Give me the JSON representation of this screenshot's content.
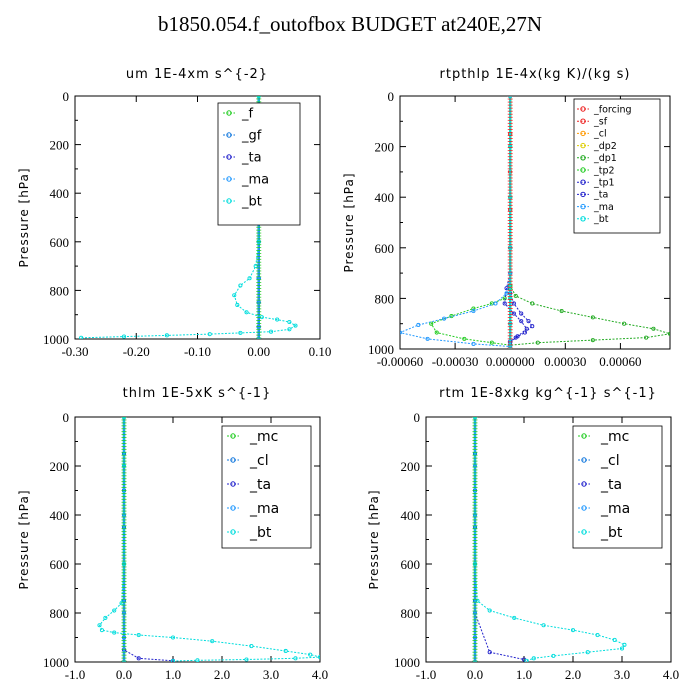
{
  "page": {
    "title": "b1850.054.f_outofbox  BUDGET at240E,27N"
  },
  "chart_data": [
    {
      "type": "line",
      "title": "um   1E-4xm  s^{-2}",
      "ylabel": "Pressure  [hPa]",
      "xlim": [
        -0.3,
        0.1
      ],
      "ylim": [
        0,
        1000
      ],
      "y_inverted": true,
      "xticks": [
        "-0.30",
        "-0.20",
        "-0.10",
        "0.00",
        "0.10"
      ],
      "yticks": [
        "0",
        "200",
        "400",
        "600",
        "800",
        "1000"
      ],
      "legend": "top-right",
      "series": [
        {
          "name": "_f",
          "color": "#22cc22",
          "x": [
            0,
            0,
            0,
            0,
            0,
            0,
            0,
            0,
            0
          ],
          "y": [
            0,
            150,
            300,
            450,
            600,
            750,
            850,
            950,
            1000
          ]
        },
        {
          "name": "_gf",
          "color": "#1177dd",
          "x": [
            0,
            0,
            0,
            0,
            0,
            0,
            0,
            0,
            0
          ],
          "y": [
            0,
            150,
            300,
            450,
            600,
            750,
            850,
            950,
            1000
          ]
        },
        {
          "name": "_ta",
          "color": "#2222cc",
          "x": [
            0,
            0,
            0,
            0,
            0,
            0,
            0,
            0
          ],
          "y": [
            0,
            200,
            400,
            600,
            750,
            850,
            950,
            1000
          ]
        },
        {
          "name": "_ma",
          "color": "#2299ff",
          "x": [
            0,
            0,
            0,
            0,
            0,
            0,
            0,
            0
          ],
          "y": [
            0,
            200,
            400,
            600,
            750,
            850,
            950,
            1000
          ]
        },
        {
          "name": "_bt",
          "color": "#00dddd",
          "x": [
            0,
            0,
            0,
            0,
            -0.005,
            -0.015,
            -0.03,
            -0.04,
            -0.035,
            -0.02,
            0.005,
            0.03,
            0.05,
            0.06,
            0.05,
            0.02,
            -0.03,
            -0.08,
            -0.15,
            -0.22,
            -0.29
          ],
          "y": [
            0,
            200,
            400,
            600,
            700,
            750,
            780,
            820,
            860,
            890,
            910,
            920,
            930,
            945,
            960,
            970,
            975,
            980,
            985,
            990,
            995
          ]
        }
      ]
    },
    {
      "type": "line",
      "title": "rtpthlp   1E-4x(kg  K)/(kg  s)",
      "ylabel": "Pressure  [hPa]",
      "xlim": [
        -0.0006,
        0.00087
      ],
      "ylim": [
        0,
        1000
      ],
      "y_inverted": true,
      "xticks": [
        "-0.00060",
        "-0.00030",
        "0.000000",
        "0.00030",
        "0.00060"
      ],
      "yticks": [
        "0",
        "200",
        "400",
        "600",
        "800",
        "1000"
      ],
      "legend": "top-right",
      "series": [
        {
          "name": "_forcing",
          "color": "#ee2222",
          "x": [
            0,
            0,
            0,
            0,
            0,
            0,
            0,
            0
          ],
          "y": [
            0,
            150,
            300,
            450,
            600,
            750,
            900,
            1000
          ]
        },
        {
          "name": "_sf",
          "color": "#ee2222",
          "x": [
            0,
            0,
            0,
            0,
            0,
            0,
            0,
            0
          ],
          "y": [
            0,
            150,
            300,
            450,
            600,
            750,
            900,
            1000
          ]
        },
        {
          "name": "_cl",
          "color": "#ff9900",
          "x": [
            0,
            0,
            0,
            0,
            0,
            0
          ],
          "y": [
            0,
            200,
            400,
            600,
            800,
            1000
          ]
        },
        {
          "name": "_dp2",
          "color": "#ddcc00",
          "x": [
            0,
            0,
            0,
            0,
            0,
            0
          ],
          "y": [
            0,
            200,
            400,
            600,
            800,
            1000
          ]
        },
        {
          "name": "_dp1",
          "color": "#22aa22",
          "x": [
            0,
            0,
            0,
            0,
            3e-05,
            0.00012,
            0.00028,
            0.00045,
            0.00062,
            0.00078,
            0.00087,
            0.00074,
            0.00045,
            0.00015,
            0
          ],
          "y": [
            0,
            400,
            600,
            750,
            790,
            820,
            850,
            875,
            900,
            920,
            940,
            955,
            965,
            975,
            985
          ]
        },
        {
          "name": "_tp2",
          "color": "#22cc22",
          "x": [
            0,
            0,
            0,
            -3e-05,
            -0.0001,
            -0.0002,
            -0.00032,
            -0.00043,
            -0.0004,
            -0.00025,
            -0.0001,
            0
          ],
          "y": [
            0,
            600,
            750,
            800,
            820,
            840,
            870,
            900,
            935,
            960,
            975,
            985
          ]
        },
        {
          "name": "_tp1",
          "color": "#2222cc",
          "x": [
            0,
            0,
            0,
            2e-05,
            6e-05,
            0.0001,
            0.00012,
            8e-05,
            3e-05,
            0
          ],
          "y": [
            0,
            600,
            780,
            820,
            860,
            890,
            910,
            935,
            955,
            975
          ]
        },
        {
          "name": "_ta",
          "color": "#2222cc",
          "x": [
            0,
            0,
            -2e-05,
            -3e-05,
            2e-05,
            6e-05,
            9e-05,
            4e-05,
            0
          ],
          "y": [
            0,
            700,
            760,
            820,
            860,
            890,
            920,
            950,
            970
          ]
        },
        {
          "name": "_ma",
          "color": "#2299ff",
          "x": [
            0,
            0,
            -2e-05,
            -8e-05,
            -0.0002,
            -0.00036,
            -0.0005,
            -0.0006,
            -0.00045,
            -0.0002,
            0
          ],
          "y": [
            0,
            700,
            780,
            820,
            850,
            880,
            905,
            935,
            960,
            980,
            990
          ]
        },
        {
          "name": "_bt",
          "color": "#00dddd",
          "x": [
            0,
            0,
            0,
            0,
            0,
            0,
            0
          ],
          "y": [
            0,
            200,
            400,
            600,
            800,
            900,
            1000
          ]
        }
      ]
    },
    {
      "type": "line",
      "title": "thlm   1E-5xK  s^{-1}",
      "ylabel": "Pressure  [hPa]",
      "xlim": [
        -1.0,
        4.0
      ],
      "ylim": [
        0,
        1000
      ],
      "y_inverted": true,
      "xticks": [
        "-1.0",
        "0.0",
        "1.0",
        "2.0",
        "3.0",
        "4.0"
      ],
      "yticks": [
        "0",
        "200",
        "400",
        "600",
        "800",
        "1000"
      ],
      "legend": "top-right",
      "series": [
        {
          "name": "_mc",
          "color": "#22cc22",
          "x": [
            0,
            0,
            0,
            0,
            0,
            0,
            0,
            0
          ],
          "y": [
            0,
            150,
            300,
            450,
            600,
            750,
            900,
            1000
          ]
        },
        {
          "name": "_cl",
          "color": "#1177dd",
          "x": [
            0,
            0,
            0,
            0,
            0,
            0,
            0,
            0
          ],
          "y": [
            0,
            150,
            300,
            450,
            600,
            750,
            900,
            1000
          ]
        },
        {
          "name": "_ta",
          "color": "#2222cc",
          "x": [
            0,
            0,
            0,
            0,
            0.3,
            1.0
          ],
          "y": [
            0,
            400,
            800,
            950,
            985,
            995
          ]
        },
        {
          "name": "_ma",
          "color": "#2299ff",
          "x": [
            0,
            0,
            0,
            0,
            0,
            0,
            0
          ],
          "y": [
            0,
            200,
            400,
            600,
            800,
            900,
            1000
          ]
        },
        {
          "name": "_bt",
          "color": "#00dddd",
          "x": [
            0,
            0,
            0,
            -0.05,
            -0.2,
            -0.38,
            -0.5,
            -0.45,
            -0.2,
            0.3,
            1.0,
            1.8,
            2.6,
            3.3,
            3.8,
            4.0,
            3.5,
            2.5,
            1.5,
            1.0
          ],
          "y": [
            0,
            200,
            600,
            760,
            790,
            820,
            850,
            870,
            880,
            890,
            900,
            915,
            935,
            955,
            970,
            980,
            985,
            990,
            993,
            996
          ]
        }
      ]
    },
    {
      "type": "line",
      "title": "rtm   1E-8xkg  kg^{-1}  s^{-1}",
      "ylabel": "Pressure  [hPa]",
      "xlim": [
        -1.0,
        4.0
      ],
      "ylim": [
        0,
        1000
      ],
      "y_inverted": true,
      "xticks": [
        "-1.0",
        "0.0",
        "1.0",
        "2.0",
        "3.0",
        "4.0"
      ],
      "yticks": [
        "0",
        "200",
        "400",
        "600",
        "800",
        "1000"
      ],
      "legend": "top-right",
      "series": [
        {
          "name": "_mc",
          "color": "#22cc22",
          "x": [
            0,
            0,
            0,
            0,
            0,
            0,
            0,
            0
          ],
          "y": [
            0,
            150,
            300,
            450,
            600,
            750,
            900,
            1000
          ]
        },
        {
          "name": "_cl",
          "color": "#1177dd",
          "x": [
            0,
            0,
            0,
            0,
            0,
            0,
            0,
            0
          ],
          "y": [
            0,
            150,
            300,
            450,
            600,
            750,
            900,
            1000
          ]
        },
        {
          "name": "_ta",
          "color": "#2222cc",
          "x": [
            0,
            0,
            0,
            0.3,
            1.0
          ],
          "y": [
            0,
            400,
            800,
            960,
            990
          ]
        },
        {
          "name": "_ma",
          "color": "#2299ff",
          "x": [
            0,
            0,
            0,
            0,
            0,
            0,
            0
          ],
          "y": [
            0,
            200,
            400,
            600,
            800,
            900,
            1000
          ]
        },
        {
          "name": "_bt",
          "color": "#00dddd",
          "x": [
            0,
            0,
            0.05,
            0.3,
            0.8,
            1.4,
            2.0,
            2.5,
            2.85,
            3.05,
            3.0,
            2.3,
            1.6,
            1.2,
            1.05
          ],
          "y": [
            0,
            600,
            750,
            790,
            820,
            850,
            870,
            890,
            910,
            930,
            945,
            960,
            975,
            985,
            995
          ]
        }
      ]
    }
  ]
}
